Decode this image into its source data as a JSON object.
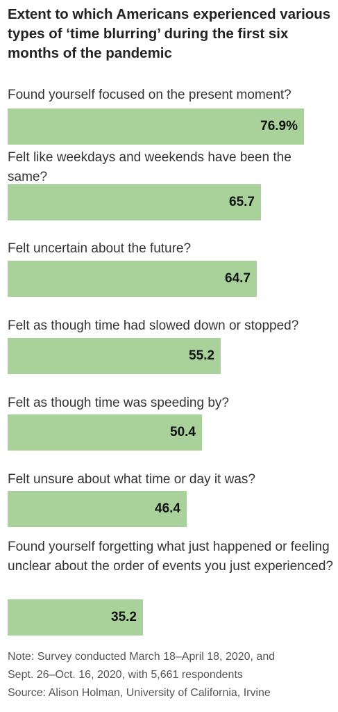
{
  "chart_data": {
    "type": "bar",
    "orientation": "horizontal",
    "title": "Extent to which Americans experienced various types of ‘time blurring’ during the first six months of the pandemic",
    "categories": [
      "Found yourself focused on the present moment?",
      "Felt like weekdays and weekends have been the same?",
      "Felt uncertain about the future?",
      "Felt as though time had slowed down or stopped?",
      "Felt as though time was speeding by?",
      "Felt unsure about what time or day it was?",
      "Found yourself forgetting what just happened or feeling unclear about the order of events you just experienced?"
    ],
    "values": [
      76.9,
      65.7,
      64.7,
      55.2,
      50.4,
      46.4,
      35.2
    ],
    "value_labels": [
      "76.9%",
      "65.7",
      "64.7",
      "55.2",
      "50.4",
      "46.4",
      "35.2"
    ],
    "bar_color": "#a8d29a",
    "note_lines": [
      "Note: Survey conducted March 18–April 18, 2020, and",
      "Sept. 26–Oct. 16, 2020, with 5,661 respondents",
      "Source: Alison Holman, University of California, Irvine"
    ]
  }
}
